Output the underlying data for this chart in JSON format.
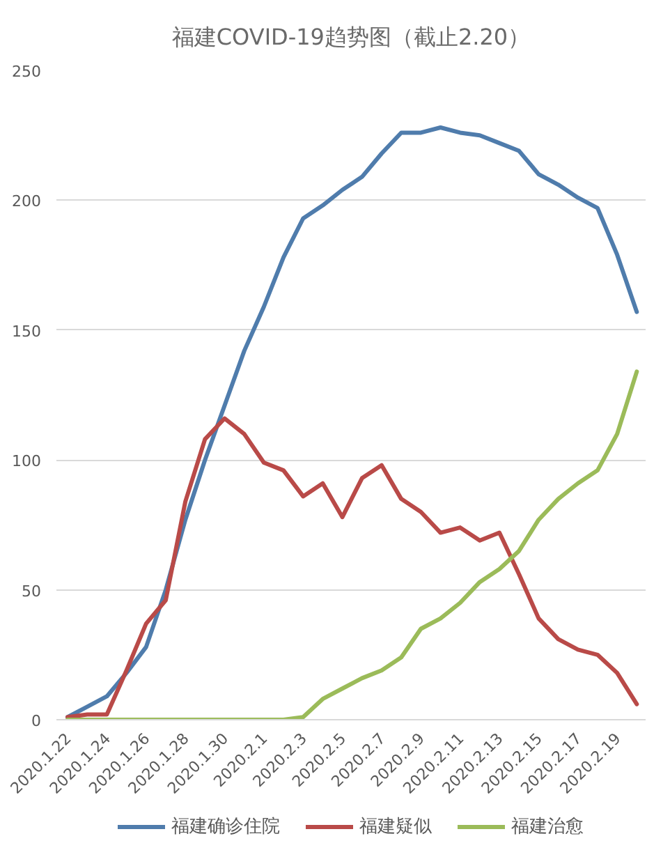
{
  "chart_data": {
    "type": "line",
    "title": "福建COVID-19趋势图（截止2.20）",
    "categories": [
      "2020.1.22",
      null,
      "2020.1.24",
      null,
      "2020.1.26",
      null,
      "2020.1.28",
      null,
      "2020.1.30",
      null,
      "2020.2.1",
      null,
      "2020.2.3",
      null,
      "2020.2.5",
      null,
      "2020.2.7",
      null,
      "2020.2.9",
      null,
      "2020.2.11",
      null,
      "2020.2.13",
      null,
      "2020.2.15",
      null,
      "2020.2.17",
      null,
      "2020.2.19",
      null
    ],
    "series": [
      {
        "name": "福建确诊住院",
        "color": "#4f7cac",
        "values": [
          1,
          5,
          9,
          18,
          28,
          50,
          77,
          100,
          121,
          142,
          159,
          178,
          193,
          198,
          204,
          209,
          218,
          226,
          226,
          228,
          226,
          225,
          222,
          219,
          210,
          206,
          201,
          197,
          179,
          157
        ]
      },
      {
        "name": "福建疑似",
        "color": "#b94a48",
        "values": [
          1,
          2,
          2,
          19,
          37,
          46,
          84,
          108,
          116,
          110,
          99,
          96,
          86,
          91,
          78,
          93,
          98,
          85,
          80,
          72,
          74,
          69,
          72,
          56,
          39,
          31,
          27,
          25,
          18,
          6
        ]
      },
      {
        "name": "福建治愈",
        "color": "#9bbb59",
        "values": [
          0,
          0,
          0,
          0,
          0,
          0,
          0,
          0,
          0,
          0,
          0,
          0,
          1,
          8,
          12,
          16,
          19,
          24,
          35,
          39,
          45,
          53,
          58,
          65,
          77,
          85,
          91,
          96,
          110,
          134
        ]
      }
    ],
    "ylim": [
      0,
      250
    ],
    "yticks": [
      0,
      50,
      100,
      150,
      200,
      250
    ],
    "grid": "y",
    "legend": "bottom",
    "line_style": "solid"
  }
}
